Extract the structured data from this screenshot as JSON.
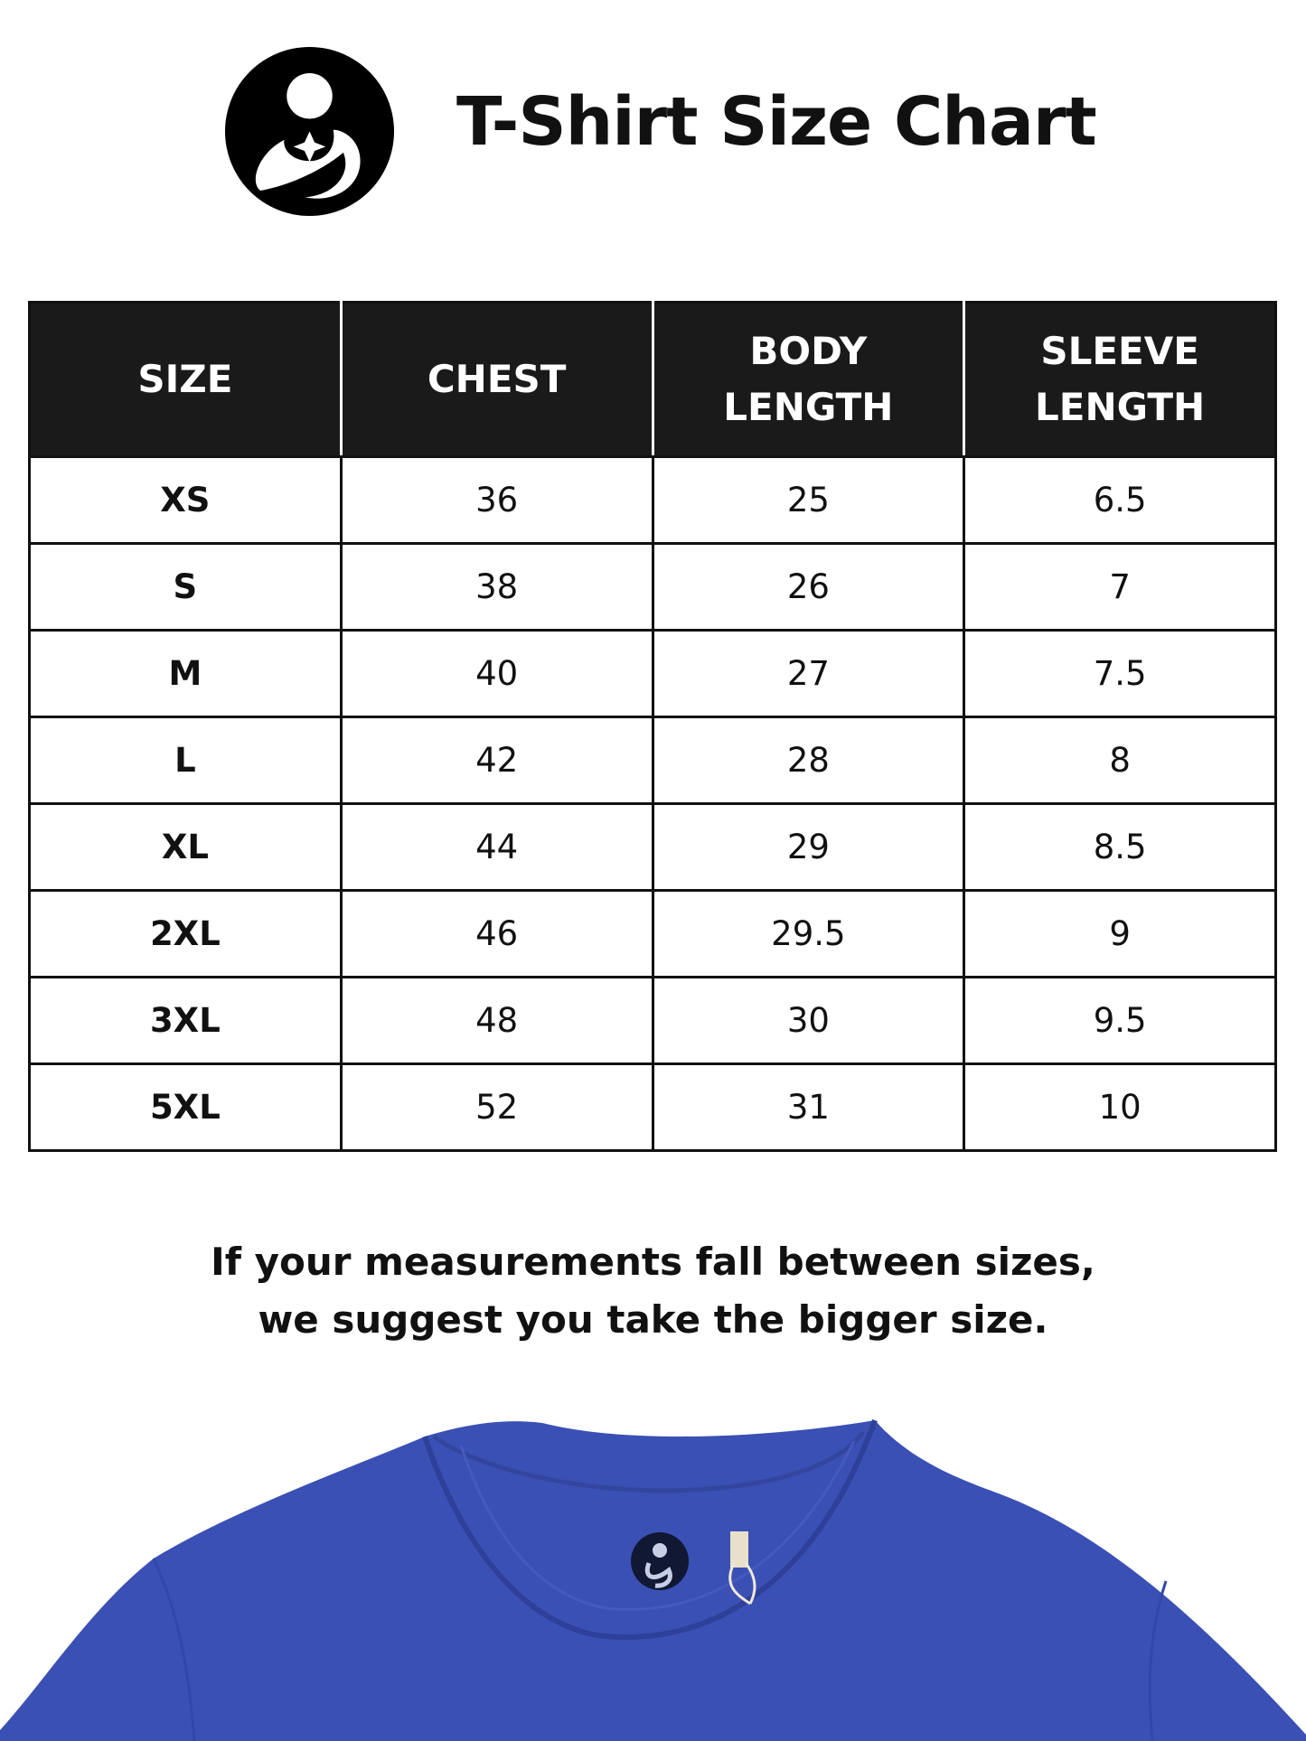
{
  "header": {
    "title": "T-Shirt Size Chart",
    "logo_icon": "mother-child-logo"
  },
  "table": {
    "columns": [
      {
        "line1": "SIZE",
        "line2": ""
      },
      {
        "line1": "CHEST",
        "line2": ""
      },
      {
        "line1": "BODY",
        "line2": "LENGTH"
      },
      {
        "line1": "SLEEVE",
        "line2": "LENGTH"
      }
    ],
    "rows": [
      [
        "XS",
        "36",
        "25",
        "6.5"
      ],
      [
        "S",
        "38",
        "26",
        "7"
      ],
      [
        "M",
        "40",
        "27",
        "7.5"
      ],
      [
        "L",
        "42",
        "28",
        "8"
      ],
      [
        "XL",
        "44",
        "29",
        "8.5"
      ],
      [
        "2XL",
        "46",
        "29.5",
        "9"
      ],
      [
        "3XL",
        "48",
        "30",
        "9.5"
      ],
      [
        "5XL",
        "52",
        "31",
        "10"
      ]
    ]
  },
  "note": {
    "line1": "If your measurements fall between sizes,",
    "line2": "we suggest you take the bigger size."
  },
  "colors": {
    "header_bg": "#1a1a1a",
    "shirt": "#3b50b4"
  }
}
